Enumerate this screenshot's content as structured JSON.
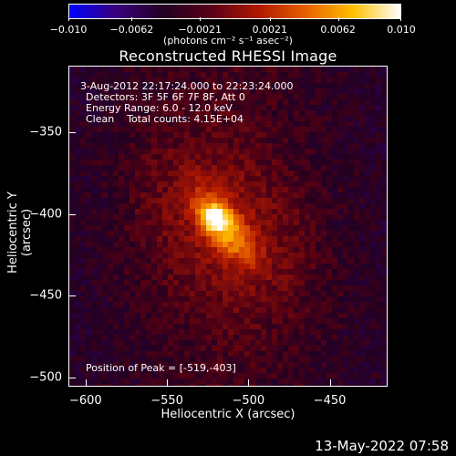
{
  "colorbar": {
    "ticks": [
      "−0.010",
      "−0.0062",
      "−0.0021",
      "0.0021",
      "0.0062",
      "0.010"
    ],
    "tick_values": [
      -0.01,
      -0.0062,
      -0.0021,
      0.0021,
      0.0062,
      0.01
    ],
    "range": [
      -0.01,
      0.01
    ],
    "unit": "(photons cm⁻² s⁻¹ asec⁻²)",
    "colors": [
      "#0000ff",
      "#3a007a",
      "#220022",
      "#5a0018",
      "#b01800",
      "#e86000",
      "#ffc000",
      "#ffffff"
    ]
  },
  "title": "Reconstructed RHESSI Image",
  "annotations": {
    "time_range": "3-Aug-2012 22:17:24.000 to 22:23:24.000",
    "detectors": "Detectors: 3F 5F 6F 7F 8F, Att 0",
    "energy": "Energy Range: 6.0 - 12.0 keV",
    "clean": "Clean    Total counts: 4.15E+04",
    "peak": "Position of Peak = [-519,-403]"
  },
  "axes": {
    "xlabel": "Heliocentric X (arcsec)",
    "ylabel": "Heliocentric Y (arcsec)",
    "xticks": [
      "−600",
      "−550",
      "−500",
      "−450"
    ],
    "xtick_values": [
      -600,
      -550,
      -500,
      -450
    ],
    "yticks": [
      "−350",
      "−400",
      "−450",
      "−500"
    ],
    "ytick_values": [
      -350,
      -400,
      -450,
      -500
    ],
    "xlim": [
      -610,
      -415
    ],
    "ylim": [
      -505,
      -310
    ]
  },
  "chart_data": {
    "type": "heatmap",
    "title": "Reconstructed RHESSI Image",
    "xlabel": "Heliocentric X (arcsec)",
    "ylabel": "Heliocentric Y (arcsec)",
    "xlim": [
      -610,
      -415
    ],
    "ylim": [
      -505,
      -310
    ],
    "peak_position": [
      -519,
      -403
    ],
    "source_center": [
      -515,
      -408
    ],
    "total_counts": 41500,
    "energy_range_keV": [
      6.0,
      12.0
    ],
    "color_range": [
      -0.01,
      0.01
    ]
  },
  "datestamp": "13-May-2022 07:58"
}
